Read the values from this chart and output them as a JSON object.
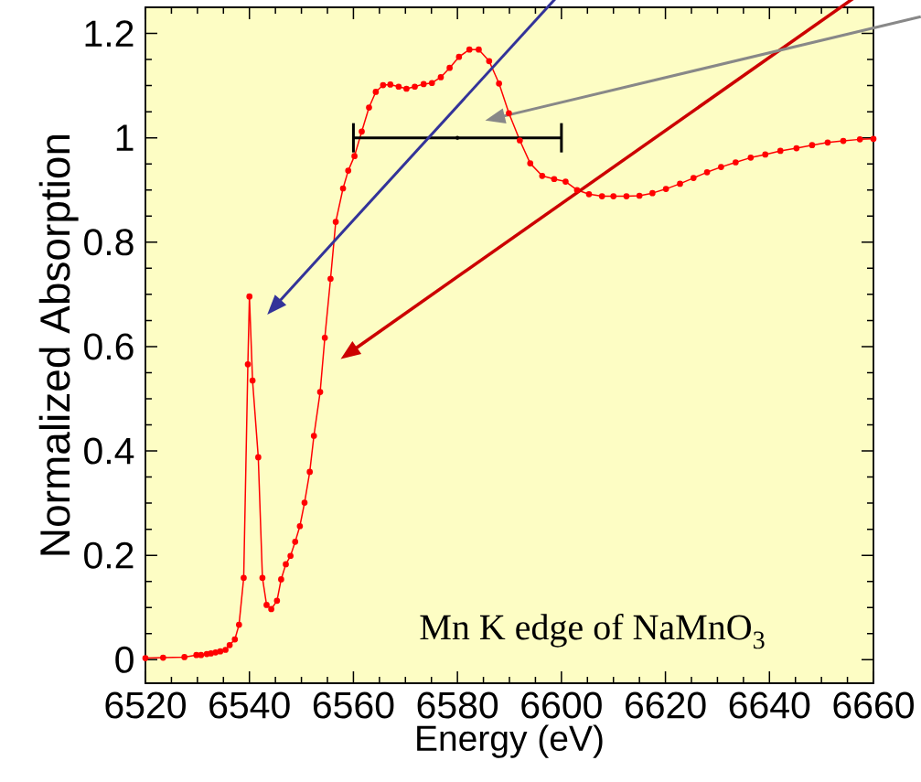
{
  "chart_data": {
    "type": "line",
    "xlabel": "Energy (eV)",
    "ylabel": "Normalized Absorption",
    "annotations": [
      "Mn K edge of NaMnO$_{3}$"
    ],
    "xlim": [
      6520,
      6660
    ],
    "ylim": [
      -0.045,
      1.25
    ],
    "xticks": [
      6520,
      6540,
      6560,
      6580,
      6600,
      6620,
      6640,
      6660
    ],
    "yticks": [
      0,
      0.2,
      0.4,
      0.6,
      0.8,
      1,
      1.2
    ],
    "series": [
      {
        "color": "#ff0000",
        "marker": "circle",
        "x": [
          6520,
          6523.4,
          6527.5,
          6529.8,
          6530.7,
          6531.8,
          6532.6,
          6533.5,
          6534.4,
          6535.4,
          6536.2,
          6537.2,
          6538.0,
          6538.9,
          6539.7,
          6540.0,
          6540.6,
          6541.7,
          6542.5,
          6543.3,
          6544.2,
          6545.3,
          6546.1,
          6547.0,
          6547.9,
          6548.8,
          6549.7,
          6550.6,
          6551.6,
          6552.4,
          6553.6,
          6554.5,
          6555.6,
          6556.6,
          6558.0,
          6559.0,
          6560.2,
          6561.6,
          6563.0,
          6564.3,
          6565.7,
          6567.1,
          6568.7,
          6570.2,
          6571.8,
          6573.5,
          6575.1,
          6576.8,
          6578.5,
          6580.3,
          6582.3,
          6584.1,
          6586.1,
          6588.0,
          6589.9,
          6592.0,
          6594.0,
          6596.3,
          6598.6,
          6600.8,
          6603.0,
          6605.3,
          6607.8,
          6610.0,
          6612.5,
          6615.0,
          6617.5,
          6620.1,
          6622.8,
          6625.4,
          6628.0,
          6630.7,
          6633.5,
          6636.4,
          6639.2,
          6642.1,
          6645.2,
          6648.2,
          6651.2,
          6654.2,
          6657.4,
          6660
        ],
        "values": [
          0.003,
          0.004,
          0.005,
          0.009,
          0.009,
          0.011,
          0.012,
          0.014,
          0.016,
          0.019,
          0.028,
          0.039,
          0.067,
          0.157,
          0.566,
          0.696,
          0.535,
          0.388,
          0.157,
          0.105,
          0.097,
          0.113,
          0.154,
          0.183,
          0.199,
          0.226,
          0.256,
          0.301,
          0.36,
          0.429,
          0.513,
          0.617,
          0.73,
          0.839,
          0.903,
          0.937,
          0.965,
          1.012,
          1.058,
          1.088,
          1.101,
          1.102,
          1.098,
          1.094,
          1.098,
          1.103,
          1.105,
          1.116,
          1.134,
          1.155,
          1.169,
          1.169,
          1.147,
          1.104,
          1.047,
          0.995,
          0.951,
          0.927,
          0.921,
          0.916,
          0.9,
          0.892,
          0.888,
          0.888,
          0.888,
          0.889,
          0.894,
          0.902,
          0.912,
          0.923,
          0.934,
          0.944,
          0.953,
          0.962,
          0.968,
          0.975,
          0.98,
          0.986,
          0.991,
          0.994,
          0.997,
          0.998
        ]
      },
      {
        "type": "scatter",
        "color": "#000000",
        "marker": "none",
        "x": [
          6580
        ],
        "values": [
          1
        ],
        "xerrors": [
          20
        ]
      }
    ]
  }
}
